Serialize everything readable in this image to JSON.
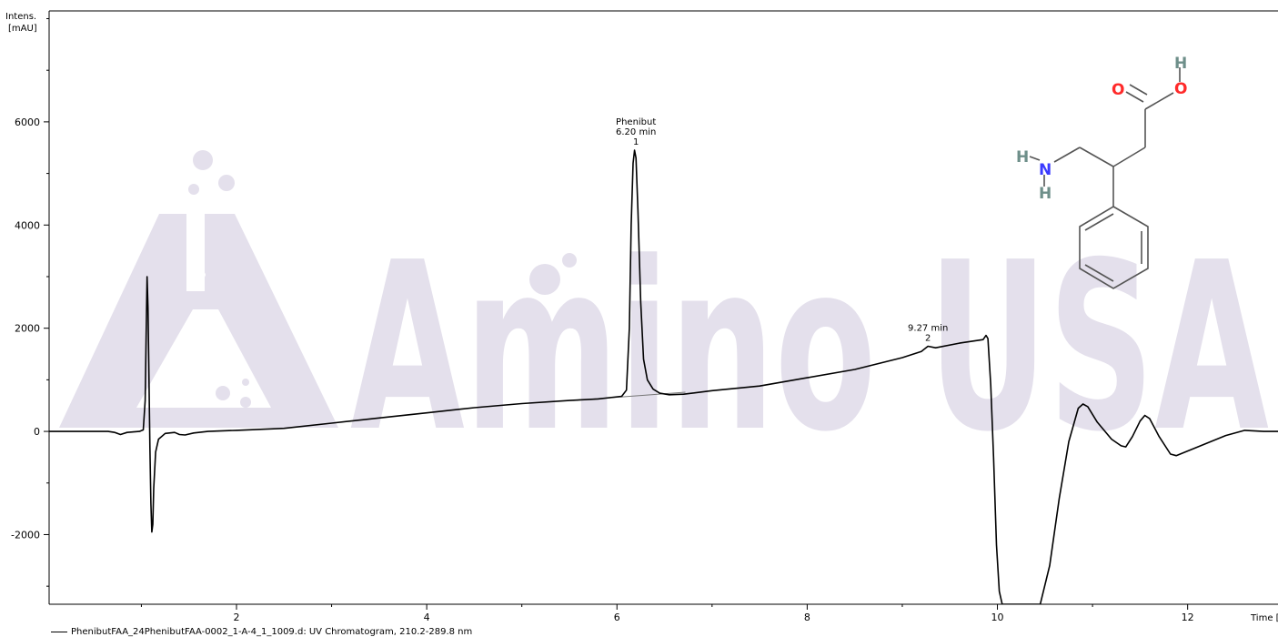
{
  "chart_data": {
    "type": "line",
    "ylabel_lines": [
      "Intens.",
      "[mAU]"
    ],
    "xlabel": "Time [min]",
    "xlim": [
      0.03,
      12.95
    ],
    "ylim": [
      -3350,
      8150
    ],
    "xticks": [
      2,
      4,
      6,
      8,
      10,
      12
    ],
    "yticks": [
      -2000,
      0,
      2000,
      4000,
      6000
    ],
    "minor_xtick_step": 1,
    "minor_ytick_step": 1000,
    "series": [
      {
        "color": "#000000",
        "points": [
          [
            0.03,
            0
          ],
          [
            0.65,
            0
          ],
          [
            0.72,
            -20
          ],
          [
            0.78,
            -60
          ],
          [
            0.85,
            -20
          ],
          [
            0.92,
            -10
          ],
          [
            0.98,
            0
          ],
          [
            1.02,
            30
          ],
          [
            1.04,
            600
          ],
          [
            1.05,
            1900
          ],
          [
            1.06,
            3000
          ],
          [
            1.07,
            2400
          ],
          [
            1.08,
            1000
          ],
          [
            1.09,
            -300
          ],
          [
            1.1,
            -1400
          ],
          [
            1.11,
            -1950
          ],
          [
            1.12,
            -1800
          ],
          [
            1.13,
            -1100
          ],
          [
            1.15,
            -400
          ],
          [
            1.18,
            -150
          ],
          [
            1.25,
            -40
          ],
          [
            1.35,
            -20
          ],
          [
            1.4,
            -60
          ],
          [
            1.46,
            -70
          ],
          [
            1.55,
            -30
          ],
          [
            1.7,
            0
          ],
          [
            2.0,
            20
          ],
          [
            2.5,
            60
          ],
          [
            3.0,
            160
          ],
          [
            3.5,
            260
          ],
          [
            4.0,
            360
          ],
          [
            4.5,
            460
          ],
          [
            5.0,
            540
          ],
          [
            5.5,
            600
          ],
          [
            5.8,
            630
          ],
          [
            6.05,
            680
          ],
          [
            6.1,
            800
          ],
          [
            6.13,
            2000
          ],
          [
            6.15,
            4000
          ],
          [
            6.17,
            5200
          ],
          [
            6.185,
            5450
          ],
          [
            6.2,
            5300
          ],
          [
            6.22,
            4300
          ],
          [
            6.25,
            2500
          ],
          [
            6.28,
            1400
          ],
          [
            6.32,
            1000
          ],
          [
            6.38,
            820
          ],
          [
            6.45,
            740
          ],
          [
            6.55,
            710
          ],
          [
            6.7,
            720
          ],
          [
            7.0,
            790
          ],
          [
            7.5,
            880
          ],
          [
            8.0,
            1040
          ],
          [
            8.5,
            1200
          ],
          [
            9.0,
            1430
          ],
          [
            9.2,
            1550
          ],
          [
            9.27,
            1650
          ],
          [
            9.35,
            1620
          ],
          [
            9.6,
            1710
          ],
          [
            9.85,
            1780
          ],
          [
            9.88,
            1860
          ],
          [
            9.9,
            1800
          ],
          [
            9.93,
            900
          ],
          [
            9.96,
            -500
          ],
          [
            9.99,
            -2200
          ],
          [
            10.02,
            -3100
          ],
          [
            10.05,
            -3350
          ],
          [
            10.45,
            -3350
          ],
          [
            10.55,
            -2600
          ],
          [
            10.65,
            -1300
          ],
          [
            10.75,
            -200
          ],
          [
            10.85,
            450
          ],
          [
            10.9,
            530
          ],
          [
            10.95,
            480
          ],
          [
            11.05,
            180
          ],
          [
            11.2,
            -150
          ],
          [
            11.3,
            -280
          ],
          [
            11.35,
            -300
          ],
          [
            11.42,
            -100
          ],
          [
            11.5,
            200
          ],
          [
            11.55,
            310
          ],
          [
            11.6,
            250
          ],
          [
            11.7,
            -100
          ],
          [
            11.82,
            -440
          ],
          [
            11.88,
            -470
          ],
          [
            12.0,
            -380
          ],
          [
            12.2,
            -230
          ],
          [
            12.4,
            -80
          ],
          [
            12.6,
            20
          ],
          [
            12.8,
            0
          ],
          [
            12.95,
            0
          ]
        ]
      }
    ],
    "baseline_segment": [
      [
        5.55,
        600
      ],
      [
        6.72,
        760
      ]
    ],
    "peak_labels": [
      {
        "x": 6.2,
        "y": 5450,
        "lines": [
          "Phenibut",
          "6.20 min",
          "1"
        ]
      },
      {
        "x": 9.27,
        "y": 1650,
        "lines": [
          "9.27 min",
          "2"
        ]
      }
    ],
    "legend": "PhenibutFAA_24PhenibutFAA-0002_1-A-4_1_1009.d: UV Chromatogram, 210.2-289.8 nm"
  },
  "watermark": {
    "text": "Amino USA",
    "color": "#e4e0ec"
  },
  "structure": {
    "atom_colors": {
      "O": "#ff2a2a",
      "N": "#3a3aff",
      "H": "#6e8f8a"
    },
    "bond_color": "#555555",
    "atoms": [
      {
        "sym": "O",
        "name": "carbonyl-oxygen"
      },
      {
        "sym": "O",
        "name": "hydroxyl-oxygen"
      },
      {
        "sym": "H",
        "name": "hydroxyl-hydrogen"
      },
      {
        "sym": "N",
        "name": "amine-nitrogen"
      },
      {
        "sym": "H",
        "name": "amine-hydrogen-left"
      },
      {
        "sym": "H",
        "name": "amine-hydrogen-bottom"
      }
    ]
  }
}
